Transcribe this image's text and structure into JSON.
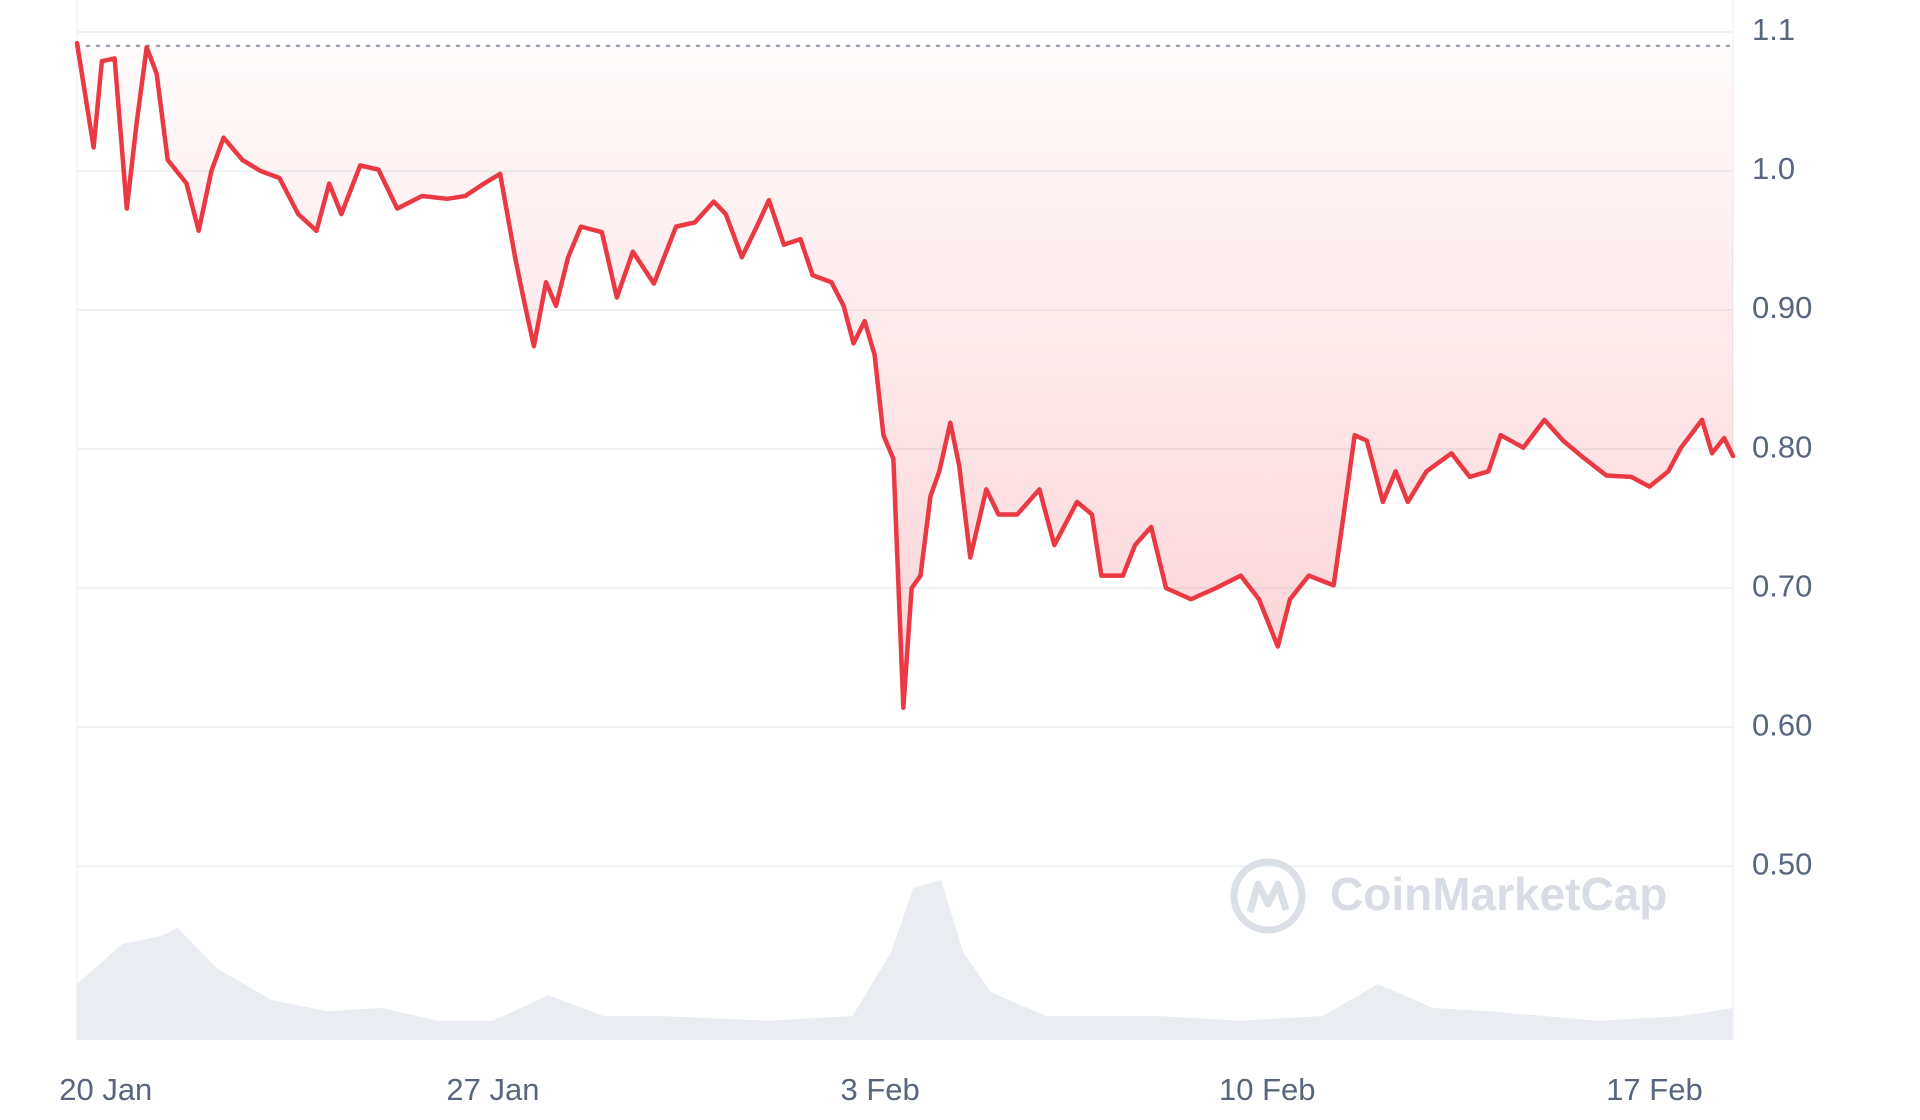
{
  "chart_data": {
    "type": "line",
    "color": "#ea3943",
    "x": [
      -0.52,
      -0.22,
      -0.07,
      0.16,
      0.38,
      0.56,
      0.74,
      0.92,
      1.12,
      1.46,
      1.68,
      1.91,
      2.13,
      2.47,
      2.8,
      3.14,
      3.48,
      3.81,
      4.04,
      4.26,
      4.6,
      4.93,
      5.27,
      5.72,
      6.17,
      6.5,
      6.84,
      7.13,
      7.4,
      7.56,
      7.74,
      7.96,
      8.14,
      8.36,
      8.59,
      8.97,
      9.24,
      9.53,
      9.91,
      10.31,
      10.65,
      10.99,
      11.21,
      11.5,
      11.77,
      11.99,
      12.26,
      12.56,
      12.78,
      13.12,
      13.34,
      13.52,
      13.72,
      13.9,
      14.06,
      14.24,
      14.42,
      14.57,
      14.73,
      14.91,
      15.07,
      15.27,
      15.43,
      15.63,
      15.92,
      16.14,
      16.48,
      16.88,
      17.15,
      17.56,
      17.83,
      18.0,
      18.39,
      18.61,
      18.9,
      19.17,
      19.62,
      20.07,
      20.52,
      20.85,
      21.19,
      21.41,
      21.75,
      22.2,
      22.35,
      22.58,
      22.8,
      23.09,
      23.32,
      23.54,
      23.88,
      24.33,
      24.66,
      25.0,
      25.22,
      25.63,
      26.01,
      26.35,
      26.68,
      27.13,
      27.58,
      27.91,
      28.25,
      28.48,
      28.86,
      29.04,
      29.26,
      29.42
    ],
    "values": [
      1.092,
      1.017,
      1.079,
      1.081,
      0.973,
      1.035,
      1.089,
      1.07,
      1.008,
      0.991,
      0.957,
      1.0,
      1.024,
      1.008,
      1.0,
      0.995,
      0.969,
      0.957,
      0.991,
      0.969,
      1.004,
      1.001,
      0.973,
      0.982,
      0.98,
      0.982,
      0.991,
      0.998,
      0.938,
      0.907,
      0.874,
      0.92,
      0.903,
      0.938,
      0.96,
      0.956,
      0.909,
      0.942,
      0.919,
      0.96,
      0.963,
      0.978,
      0.969,
      0.938,
      0.96,
      0.979,
      0.947,
      0.951,
      0.925,
      0.92,
      0.903,
      0.876,
      0.892,
      0.868,
      0.81,
      0.793,
      0.614,
      0.7,
      0.709,
      0.766,
      0.784,
      0.819,
      0.788,
      0.722,
      0.771,
      0.753,
      0.753,
      0.771,
      0.731,
      0.762,
      0.753,
      0.709,
      0.709,
      0.731,
      0.744,
      0.7,
      0.692,
      0.7,
      0.709,
      0.692,
      0.658,
      0.692,
      0.709,
      0.702,
      0.744,
      0.81,
      0.806,
      0.762,
      0.784,
      0.762,
      0.784,
      0.797,
      0.78,
      0.784,
      0.81,
      0.801,
      0.821,
      0.806,
      0.795,
      0.781,
      0.78,
      0.773,
      0.784,
      0.801,
      0.821,
      0.797,
      0.808,
      0.795
    ],
    "reference_line": 1.09,
    "xlim": [
      -0.52,
      29.42
    ],
    "ylim": [
      0.375,
      1.123
    ],
    "xticks": [
      {
        "value": 0,
        "label": "20 Jan"
      },
      {
        "value": 7,
        "label": "27 Jan"
      },
      {
        "value": 14,
        "label": "3 Feb"
      },
      {
        "value": 21,
        "label": "10 Feb"
      },
      {
        "value": 28,
        "label": "17 Feb"
      }
    ],
    "yticks": [
      {
        "value": 0.5,
        "label": "0.50"
      },
      {
        "value": 0.6,
        "label": "0.60"
      },
      {
        "value": 0.7,
        "label": "0.70"
      },
      {
        "value": 0.8,
        "label": "0.80"
      },
      {
        "value": 0.9,
        "label": "0.90"
      },
      {
        "value": 1,
        "label": "1.0"
      },
      1.1
    ],
    "grid": true,
    "volume": {
      "color": "#e9ecf0",
      "ylim": [
        0,
        100
      ],
      "x": [
        -0.52,
        0.3,
        1.0,
        1.3,
        2.0,
        3.0,
        4.0,
        5.0,
        6.0,
        7.0,
        8.0,
        9.0,
        10.0,
        12.0,
        13.5,
        14.2,
        14.6,
        15.1,
        15.5,
        16.0,
        17.0,
        19.0,
        20.5,
        22.0,
        23.0,
        24.0,
        25.0,
        27.0,
        28.5,
        29.42
      ],
      "values": [
        35,
        60,
        65,
        70,
        45,
        25,
        18,
        20,
        12,
        12,
        28,
        15,
        15,
        12,
        15,
        55,
        95,
        100,
        55,
        30,
        15,
        15,
        12,
        15,
        35,
        20,
        18,
        12,
        15,
        20
      ]
    },
    "watermark": "CoinMarketCap"
  }
}
